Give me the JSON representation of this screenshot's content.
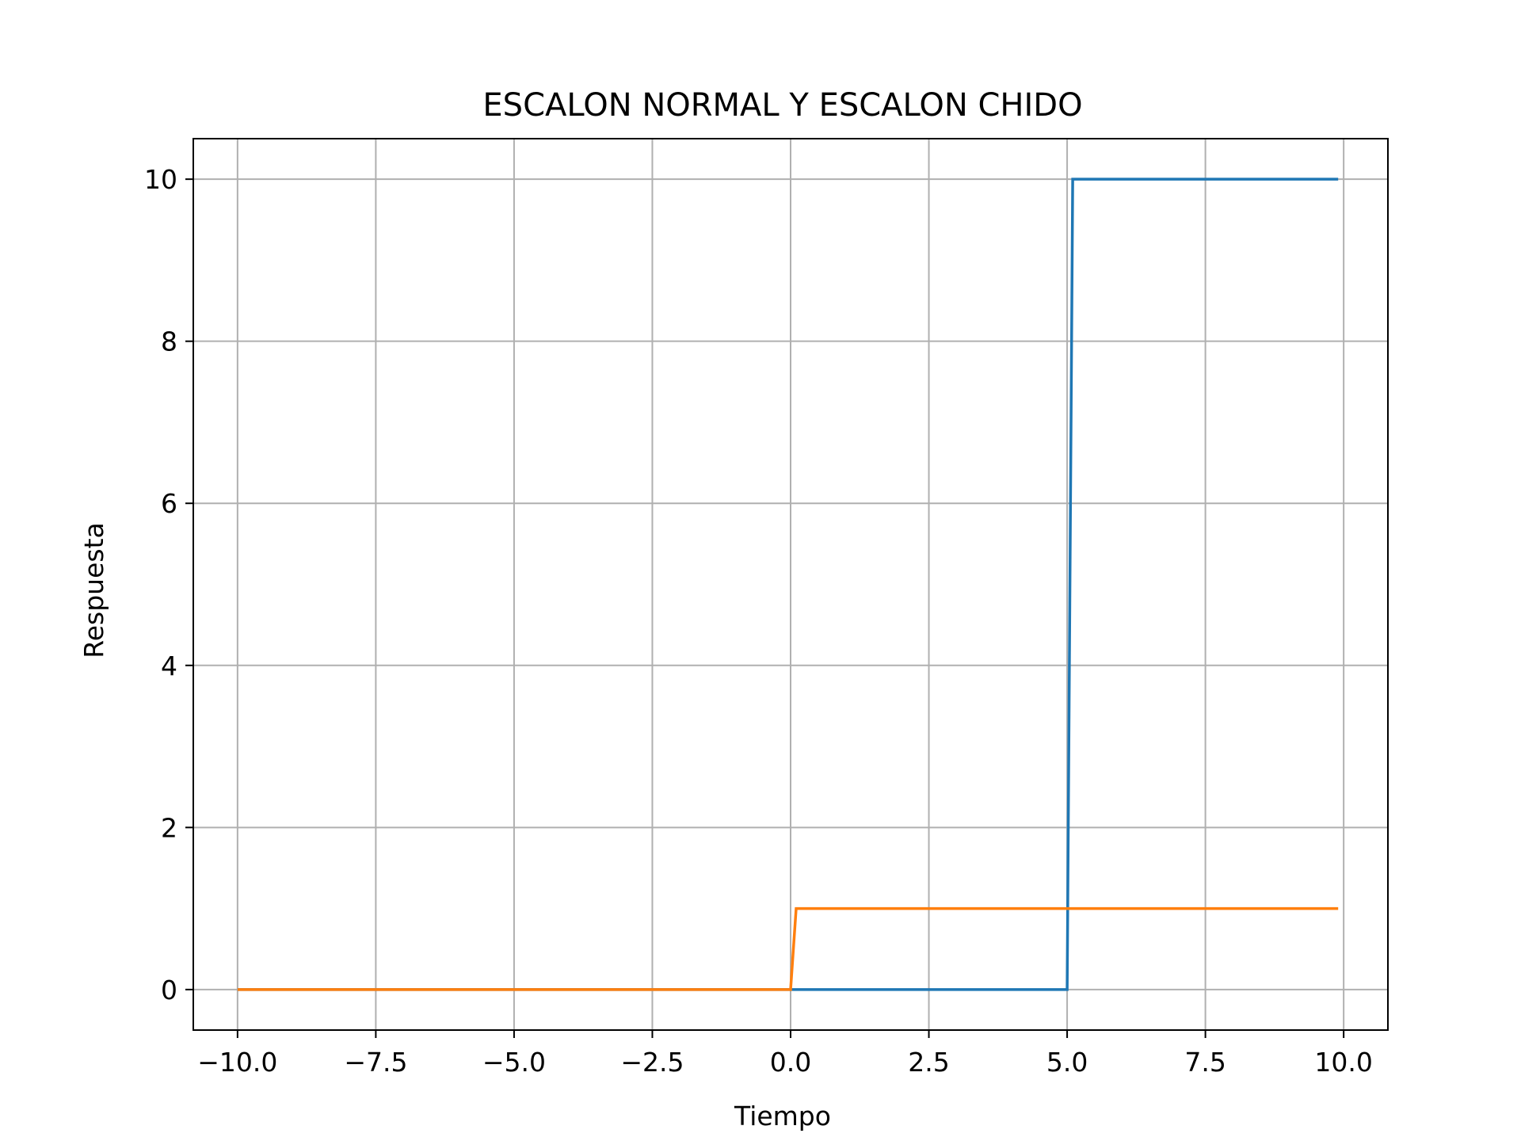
{
  "chart_data": {
    "type": "line",
    "title": "ESCALON NORMAL Y ESCALON CHIDO",
    "xlabel": "Tiempo",
    "ylabel": "Respuesta",
    "xlim": [
      -10.8,
      10.8
    ],
    "ylim": [
      -0.5,
      10.5
    ],
    "grid": true,
    "xticks": [
      -10.0,
      -7.5,
      -5.0,
      -2.5,
      0.0,
      2.5,
      5.0,
      7.5,
      10.0
    ],
    "xtick_labels": [
      "−10.0",
      "−7.5",
      "−5.0",
      "−2.5",
      "0.0",
      "2.5",
      "5.0",
      "7.5",
      "10.0"
    ],
    "yticks": [
      0,
      2,
      4,
      6,
      8,
      10
    ],
    "ytick_labels": [
      "0",
      "2",
      "4",
      "6",
      "8",
      "10"
    ],
    "series": [
      {
        "color": "#1f77b4",
        "points": [
          [
            -10.0,
            0
          ],
          [
            5.0,
            0
          ],
          [
            5.1,
            10
          ],
          [
            9.9,
            10
          ]
        ]
      },
      {
        "color": "#ff7f0e",
        "points": [
          [
            -10.0,
            0
          ],
          [
            0.0,
            0
          ],
          [
            0.1,
            1
          ],
          [
            9.9,
            1
          ]
        ]
      }
    ]
  }
}
